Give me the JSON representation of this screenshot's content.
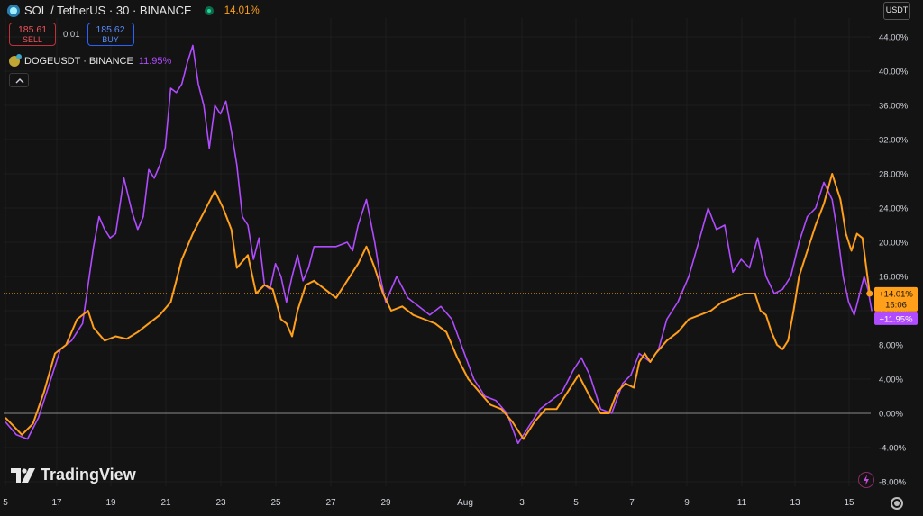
{
  "header": {
    "symbol": "SOL / TetherUS · 30 · BINANCE",
    "change": "14.01%"
  },
  "trade": {
    "sell_price": "185.61",
    "sell_label": "SELL",
    "spread": "0.01",
    "buy_price": "185.62",
    "buy_label": "BUY"
  },
  "compare": {
    "symbol": "DOGEUSDT · BINANCE",
    "change": "11.95%"
  },
  "currency": "USDT",
  "watermark": "TradingView",
  "colors": {
    "sol": "#ff9f1a",
    "doge": "#b14bff",
    "background": "#131313",
    "grid": "#1e1e1e"
  },
  "icons": [
    "sol-logo-icon",
    "market-status-icon",
    "doge-logo-icon",
    "chevron-up-icon",
    "lightning-icon",
    "settings-icon"
  ],
  "chart_data": {
    "type": "line",
    "x_tick_labels": [
      "5",
      "17",
      "19",
      "21",
      "23",
      "25",
      "27",
      "29",
      "Aug",
      "3",
      "5",
      "7",
      "9",
      "11",
      "13",
      "15"
    ],
    "y_tick_labels": [
      "44.00%",
      "40.00%",
      "36.00%",
      "32.00%",
      "28.00%",
      "24.00%",
      "20.00%",
      "16.00%",
      "12.00%",
      "8.00%",
      "4.00%",
      "0.00%",
      "-4.00%",
      "-8.00%"
    ],
    "ylim": [
      -8,
      44
    ],
    "x_range": [
      0,
      15.7
    ],
    "series": [
      {
        "name": "SOL / TetherUS",
        "color": "#ff9f1a",
        "last_value_label": "+14.01%",
        "countdown": "16:06",
        "points": [
          [
            0.0,
            -0.5
          ],
          [
            0.15,
            -1.5
          ],
          [
            0.3,
            -2.5
          ],
          [
            0.5,
            -1.2
          ],
          [
            0.7,
            2.5
          ],
          [
            0.9,
            7.0
          ],
          [
            1.1,
            8.0
          ],
          [
            1.3,
            11.0
          ],
          [
            1.5,
            12.0
          ],
          [
            1.6,
            10.0
          ],
          [
            1.8,
            8.5
          ],
          [
            2.0,
            9.0
          ],
          [
            2.2,
            8.7
          ],
          [
            2.4,
            9.5
          ],
          [
            2.6,
            10.5
          ],
          [
            2.8,
            11.5
          ],
          [
            3.0,
            13.0
          ],
          [
            3.2,
            18.0
          ],
          [
            3.4,
            21.0
          ],
          [
            3.6,
            23.5
          ],
          [
            3.8,
            26.0
          ],
          [
            3.95,
            24.0
          ],
          [
            4.1,
            21.5
          ],
          [
            4.2,
            17.0
          ],
          [
            4.4,
            18.5
          ],
          [
            4.55,
            14.0
          ],
          [
            4.7,
            15.0
          ],
          [
            4.85,
            14.5
          ],
          [
            5.0,
            11.0
          ],
          [
            5.1,
            10.5
          ],
          [
            5.2,
            9.0
          ],
          [
            5.3,
            12.0
          ],
          [
            5.45,
            15.0
          ],
          [
            5.6,
            15.5
          ],
          [
            5.8,
            14.5
          ],
          [
            6.0,
            13.5
          ],
          [
            6.2,
            15.5
          ],
          [
            6.4,
            17.5
          ],
          [
            6.55,
            19.5
          ],
          [
            6.7,
            17.0
          ],
          [
            6.85,
            14.0
          ],
          [
            7.0,
            12.0
          ],
          [
            7.2,
            12.5
          ],
          [
            7.4,
            11.5
          ],
          [
            7.6,
            11.0
          ],
          [
            7.8,
            10.5
          ],
          [
            8.0,
            9.5
          ],
          [
            8.2,
            6.5
          ],
          [
            8.4,
            4.0
          ],
          [
            8.6,
            2.5
          ],
          [
            8.8,
            1.0
          ],
          [
            9.0,
            0.5
          ],
          [
            9.2,
            -1.0
          ],
          [
            9.4,
            -3.0
          ],
          [
            9.6,
            -1.0
          ],
          [
            9.8,
            0.5
          ],
          [
            10.0,
            0.5
          ],
          [
            10.2,
            2.5
          ],
          [
            10.4,
            4.5
          ],
          [
            10.6,
            2.0
          ],
          [
            10.8,
            0.0
          ],
          [
            10.95,
            0.0
          ],
          [
            11.1,
            2.5
          ],
          [
            11.25,
            3.5
          ],
          [
            11.4,
            3.0
          ],
          [
            11.5,
            6.0
          ],
          [
            11.6,
            7.0
          ],
          [
            11.7,
            6.0
          ],
          [
            11.8,
            7.0
          ],
          [
            12.0,
            8.5
          ],
          [
            12.2,
            9.5
          ],
          [
            12.4,
            11.0
          ],
          [
            12.6,
            11.5
          ],
          [
            12.8,
            12.0
          ],
          [
            13.0,
            13.0
          ],
          [
            13.2,
            13.5
          ],
          [
            13.4,
            14.0
          ],
          [
            13.6,
            14.0
          ],
          [
            13.7,
            12.0
          ],
          [
            13.8,
            11.5
          ],
          [
            13.9,
            9.5
          ],
          [
            14.0,
            8.0
          ],
          [
            14.1,
            7.5
          ],
          [
            14.2,
            8.5
          ],
          [
            14.3,
            12.0
          ],
          [
            14.4,
            16.0
          ],
          [
            14.55,
            19.0
          ],
          [
            14.7,
            22.0
          ],
          [
            14.85,
            24.5
          ],
          [
            15.0,
            28.0
          ],
          [
            15.15,
            25.0
          ],
          [
            15.25,
            21.0
          ],
          [
            15.35,
            19.0
          ],
          [
            15.45,
            21.0
          ],
          [
            15.55,
            20.5
          ],
          [
            15.62,
            17.0
          ],
          [
            15.68,
            14.0
          ]
        ]
      },
      {
        "name": "DOGEUSDT · BINANCE",
        "color": "#b14bff",
        "last_value_label": "+11.95%",
        "points": [
          [
            0.0,
            -1.0
          ],
          [
            0.2,
            -2.5
          ],
          [
            0.4,
            -3.0
          ],
          [
            0.6,
            -0.5
          ],
          [
            0.8,
            3.5
          ],
          [
            1.0,
            7.5
          ],
          [
            1.2,
            8.5
          ],
          [
            1.4,
            10.5
          ],
          [
            1.5,
            15.0
          ],
          [
            1.6,
            19.5
          ],
          [
            1.7,
            23.0
          ],
          [
            1.8,
            21.5
          ],
          [
            1.9,
            20.5
          ],
          [
            2.0,
            21.0
          ],
          [
            2.15,
            27.5
          ],
          [
            2.3,
            23.5
          ],
          [
            2.4,
            21.5
          ],
          [
            2.5,
            23.0
          ],
          [
            2.6,
            28.5
          ],
          [
            2.7,
            27.5
          ],
          [
            2.8,
            29.0
          ],
          [
            2.9,
            31.0
          ],
          [
            3.0,
            38.0
          ],
          [
            3.1,
            37.5
          ],
          [
            3.2,
            38.5
          ],
          [
            3.3,
            41.0
          ],
          [
            3.4,
            43.0
          ],
          [
            3.5,
            38.5
          ],
          [
            3.6,
            36.0
          ],
          [
            3.7,
            31.0
          ],
          [
            3.8,
            36.0
          ],
          [
            3.9,
            35.0
          ],
          [
            4.0,
            36.5
          ],
          [
            4.1,
            33.0
          ],
          [
            4.2,
            29.0
          ],
          [
            4.3,
            23.0
          ],
          [
            4.4,
            22.0
          ],
          [
            4.5,
            18.0
          ],
          [
            4.6,
            20.5
          ],
          [
            4.7,
            15.0
          ],
          [
            4.8,
            14.5
          ],
          [
            4.9,
            17.5
          ],
          [
            5.0,
            16.0
          ],
          [
            5.1,
            13.0
          ],
          [
            5.2,
            16.0
          ],
          [
            5.3,
            18.5
          ],
          [
            5.4,
            15.5
          ],
          [
            5.5,
            17.0
          ],
          [
            5.6,
            19.5
          ],
          [
            5.8,
            19.5
          ],
          [
            6.0,
            19.5
          ],
          [
            6.2,
            20.0
          ],
          [
            6.3,
            19.0
          ],
          [
            6.4,
            22.0
          ],
          [
            6.55,
            25.0
          ],
          [
            6.7,
            20.0
          ],
          [
            6.8,
            16.0
          ],
          [
            6.9,
            13.0
          ],
          [
            7.1,
            16.0
          ],
          [
            7.3,
            13.5
          ],
          [
            7.5,
            12.5
          ],
          [
            7.7,
            11.5
          ],
          [
            7.9,
            12.5
          ],
          [
            8.1,
            11.0
          ],
          [
            8.3,
            7.5
          ],
          [
            8.5,
            4.0
          ],
          [
            8.7,
            2.0
          ],
          [
            8.9,
            1.5
          ],
          [
            9.1,
            0.0
          ],
          [
            9.3,
            -3.5
          ],
          [
            9.5,
            -1.5
          ],
          [
            9.7,
            0.5
          ],
          [
            9.9,
            1.5
          ],
          [
            10.1,
            2.5
          ],
          [
            10.3,
            5.0
          ],
          [
            10.45,
            6.5
          ],
          [
            10.6,
            4.5
          ],
          [
            10.8,
            0.5
          ],
          [
            11.0,
            0.0
          ],
          [
            11.2,
            3.5
          ],
          [
            11.35,
            4.5
          ],
          [
            11.5,
            7.0
          ],
          [
            11.7,
            6.0
          ],
          [
            11.85,
            7.5
          ],
          [
            12.0,
            11.0
          ],
          [
            12.2,
            13.0
          ],
          [
            12.4,
            16.0
          ],
          [
            12.6,
            20.5
          ],
          [
            12.75,
            24.0
          ],
          [
            12.9,
            21.5
          ],
          [
            13.05,
            22.0
          ],
          [
            13.2,
            16.5
          ],
          [
            13.35,
            18.0
          ],
          [
            13.5,
            17.0
          ],
          [
            13.65,
            20.5
          ],
          [
            13.8,
            16.0
          ],
          [
            13.95,
            14.0
          ],
          [
            14.1,
            14.5
          ],
          [
            14.25,
            16.0
          ],
          [
            14.4,
            20.0
          ],
          [
            14.55,
            23.0
          ],
          [
            14.7,
            24.0
          ],
          [
            14.85,
            27.0
          ],
          [
            15.0,
            25.0
          ],
          [
            15.1,
            21.0
          ],
          [
            15.2,
            16.0
          ],
          [
            15.3,
            13.0
          ],
          [
            15.4,
            11.5
          ],
          [
            15.5,
            14.0
          ],
          [
            15.58,
            16.0
          ],
          [
            15.65,
            14.5
          ],
          [
            15.72,
            11.95
          ]
        ]
      }
    ],
    "current_value_marker": 14.01,
    "grid": true
  }
}
